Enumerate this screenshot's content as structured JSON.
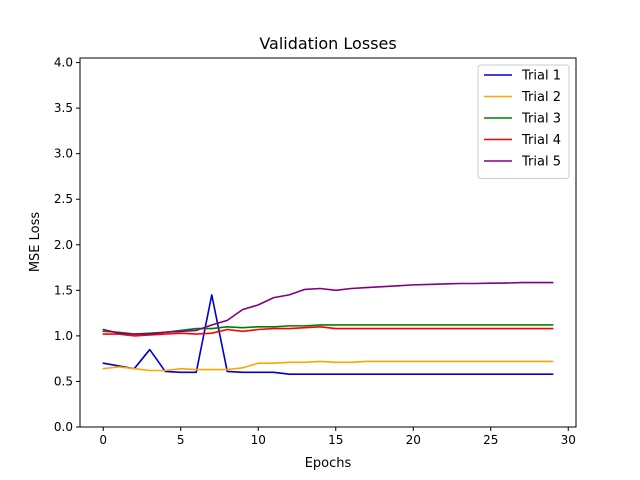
{
  "chart_data": {
    "type": "line",
    "title": "Validation Losses",
    "xlabel": "Epochs",
    "ylabel": "MSE Loss",
    "xlim": [
      -1.5,
      30.5
    ],
    "ylim": [
      0,
      4.05
    ],
    "xticks": [
      0,
      5,
      10,
      15,
      20,
      25,
      30
    ],
    "yticks": [
      0.0,
      0.5,
      1.0,
      1.5,
      2.0,
      2.5,
      3.0,
      3.5,
      4.0
    ],
    "xtick_labels": [
      "0",
      "5",
      "10",
      "15",
      "20",
      "25",
      "30"
    ],
    "ytick_labels": [
      "0.0",
      "0.5",
      "1.0",
      "1.5",
      "2.0",
      "2.5",
      "3.0",
      "3.5",
      "4.0"
    ],
    "grid": false,
    "legend_position": "top-right",
    "x": [
      0,
      1,
      2,
      3,
      4,
      5,
      6,
      7,
      8,
      9,
      10,
      11,
      12,
      13,
      14,
      15,
      16,
      17,
      18,
      19,
      20,
      21,
      22,
      23,
      24,
      25,
      26,
      27,
      28,
      29
    ],
    "series": [
      {
        "name": "Trial 1",
        "color": "#0000cc",
        "values": [
          0.7,
          0.67,
          0.64,
          0.85,
          0.61,
          0.6,
          0.6,
          1.45,
          0.61,
          0.6,
          0.6,
          0.6,
          0.58,
          0.58,
          0.58,
          0.58,
          0.58,
          0.58,
          0.58,
          0.58,
          0.58,
          0.58,
          0.58,
          0.58,
          0.58,
          0.58,
          0.58,
          0.58,
          0.58,
          0.58
        ]
      },
      {
        "name": "Trial 2",
        "color": "#ffa500",
        "values": [
          0.64,
          0.66,
          0.64,
          0.62,
          0.62,
          0.64,
          0.63,
          0.63,
          0.63,
          0.65,
          0.7,
          0.7,
          0.71,
          0.71,
          0.72,
          0.71,
          0.71,
          0.72,
          0.72,
          0.72,
          0.72,
          0.72,
          0.72,
          0.72,
          0.72,
          0.72,
          0.72,
          0.72,
          0.72,
          0.72
        ]
      },
      {
        "name": "Trial 3",
        "color": "#008000",
        "values": [
          1.05,
          1.04,
          1.02,
          1.03,
          1.04,
          1.06,
          1.08,
          1.08,
          1.1,
          1.09,
          1.1,
          1.1,
          1.11,
          1.11,
          1.12,
          1.12,
          1.12,
          1.12,
          1.12,
          1.12,
          1.12,
          1.12,
          1.12,
          1.12,
          1.12,
          1.12,
          1.12,
          1.12,
          1.12,
          1.12
        ]
      },
      {
        "name": "Trial 4",
        "color": "#ff0000",
        "values": [
          1.02,
          1.02,
          1.0,
          1.01,
          1.02,
          1.03,
          1.02,
          1.03,
          1.07,
          1.05,
          1.07,
          1.08,
          1.08,
          1.09,
          1.1,
          1.08,
          1.08,
          1.08,
          1.08,
          1.08,
          1.08,
          1.08,
          1.08,
          1.08,
          1.08,
          1.08,
          1.08,
          1.08,
          1.08,
          1.08
        ]
      },
      {
        "name": "Trial 5",
        "color": "#800080",
        "values": [
          1.07,
          1.03,
          1.02,
          1.02,
          1.04,
          1.05,
          1.06,
          1.12,
          1.17,
          1.29,
          1.34,
          1.42,
          1.45,
          1.51,
          1.52,
          1.5,
          1.52,
          1.53,
          1.54,
          1.55,
          1.56,
          1.565,
          1.57,
          1.575,
          1.575,
          1.578,
          1.58,
          1.585,
          1.585,
          1.585
        ]
      }
    ]
  }
}
